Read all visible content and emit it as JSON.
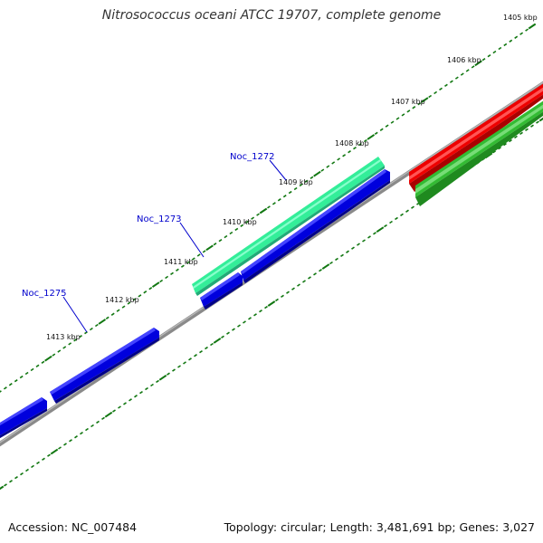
{
  "header": {
    "title": "Nitrosococcus oceani ATCC 19707, complete genome"
  },
  "footer": {
    "accession": "Accession: NC_007484",
    "summary": "Topology: circular; Length: 3,481,691 bp; Genes: 3,027"
  },
  "scale": {
    "labels": [
      "1405 kbp",
      "1406 kbp",
      "1407 kbp",
      "1408 kbp",
      "1409 kbp",
      "1410 kbp",
      "1411 kbp",
      "1412 kbp",
      "1413 kbp"
    ]
  },
  "genes": [
    {
      "name": "Noc_1272",
      "color": "#33ee99",
      "track": "forward"
    },
    {
      "name": "Noc_1273",
      "color": "#0000dd",
      "track": "forward"
    },
    {
      "name": "Noc_1275",
      "color": "#0000dd",
      "track": "forward"
    }
  ],
  "features": {
    "forward_color": "#0000dd",
    "highlight_color": "#33ee99",
    "red_color": "#ee0000",
    "green_color": "#33bb33",
    "backbone_color": "#777777",
    "tick_color": "#117711"
  }
}
